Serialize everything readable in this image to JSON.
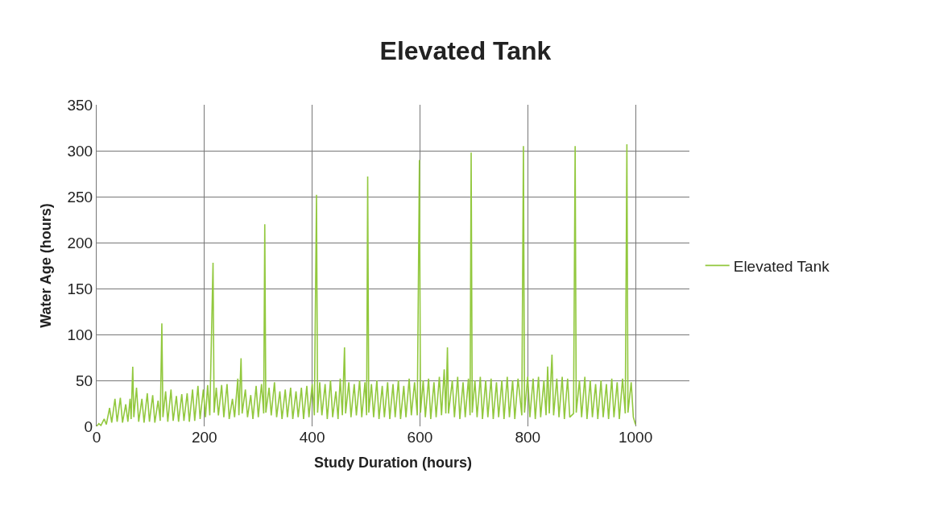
{
  "chart_data": {
    "type": "line",
    "title": "Elevated Tank",
    "xlabel": "Study Duration (hours)",
    "ylabel": "Water Age (hours)",
    "xlim": [
      0,
      1100
    ],
    "xticks": [
      0,
      200,
      400,
      600,
      800,
      1000
    ],
    "ylim": [
      0,
      350
    ],
    "yticks": [
      0,
      50,
      100,
      150,
      200,
      250,
      300,
      350
    ],
    "grid": true,
    "legend": "right",
    "marker": "none",
    "line_style": "solid",
    "x": [
      0,
      4,
      8,
      14,
      18,
      24,
      28,
      34,
      38,
      44,
      48,
      54,
      58,
      62,
      64,
      67,
      69,
      74,
      78,
      84,
      88,
      94,
      98,
      104,
      108,
      114,
      118,
      121,
      123,
      128,
      132,
      138,
      142,
      148,
      152,
      158,
      162,
      168,
      172,
      178,
      182,
      188,
      192,
      198,
      202,
      206,
      210,
      216,
      218,
      222,
      226,
      232,
      236,
      242,
      246,
      252,
      256,
      262,
      264,
      268,
      270,
      276,
      280,
      286,
      290,
      296,
      300,
      306,
      310,
      312,
      314,
      320,
      324,
      330,
      334,
      340,
      344,
      350,
      354,
      360,
      364,
      370,
      374,
      380,
      384,
      390,
      394,
      400,
      404,
      408,
      410,
      414,
      418,
      424,
      428,
      434,
      438,
      444,
      448,
      452,
      456,
      460,
      462,
      468,
      472,
      478,
      482,
      488,
      492,
      498,
      501,
      503,
      505,
      510,
      514,
      520,
      524,
      530,
      534,
      540,
      544,
      550,
      554,
      560,
      564,
      570,
      574,
      580,
      584,
      590,
      595,
      599,
      601,
      606,
      610,
      616,
      620,
      626,
      630,
      636,
      640,
      645,
      648,
      651,
      653,
      660,
      664,
      670,
      674,
      680,
      684,
      690,
      693,
      695,
      697,
      702,
      706,
      712,
      716,
      722,
      726,
      732,
      736,
      742,
      746,
      752,
      756,
      762,
      766,
      772,
      776,
      782,
      789,
      792,
      794,
      800,
      804,
      810,
      814,
      820,
      824,
      830,
      834,
      837,
      840,
      845,
      848,
      854,
      858,
      864,
      868,
      874,
      878,
      885,
      888,
      890,
      896,
      900,
      906,
      910,
      916,
      920,
      926,
      930,
      936,
      940,
      946,
      950,
      956,
      960,
      966,
      970,
      976,
      981,
      984,
      986,
      992,
      996,
      1000
    ],
    "series": [
      {
        "name": "Elevated Tank",
        "color": "#92c83e",
        "values": [
          0,
          3,
          1,
          8,
          2,
          20,
          4,
          30,
          5,
          31,
          4,
          24,
          5,
          30,
          8,
          65,
          10,
          42,
          5,
          30,
          4,
          36,
          5,
          34,
          4,
          28,
          6,
          112,
          10,
          38,
          5,
          40,
          6,
          33,
          5,
          35,
          6,
          36,
          5,
          40,
          6,
          44,
          8,
          40,
          10,
          45,
          12,
          178,
          15,
          42,
          12,
          45,
          10,
          46,
          8,
          30,
          10,
          52,
          12,
          74,
          14,
          40,
          10,
          34,
          8,
          44,
          10,
          46,
          14,
          220,
          15,
          42,
          12,
          48,
          10,
          38,
          8,
          40,
          10,
          42,
          8,
          38,
          10,
          42,
          8,
          44,
          10,
          46,
          12,
          252,
          15,
          48,
          12,
          46,
          8,
          50,
          10,
          38,
          8,
          52,
          12,
          86,
          14,
          48,
          10,
          46,
          12,
          50,
          10,
          48,
          12,
          272,
          15,
          46,
          10,
          50,
          8,
          44,
          10,
          48,
          8,
          46,
          10,
          50,
          8,
          44,
          10,
          52,
          12,
          48,
          12,
          290,
          15,
          50,
          10,
          52,
          8,
          48,
          10,
          54,
          12,
          62,
          14,
          86,
          14,
          50,
          10,
          54,
          8,
          48,
          10,
          52,
          12,
          298,
          15,
          50,
          10,
          54,
          8,
          50,
          10,
          52,
          8,
          48,
          10,
          50,
          8,
          54,
          10,
          50,
          8,
          52,
          12,
          305,
          15,
          54,
          10,
          52,
          8,
          54,
          10,
          50,
          12,
          65,
          14,
          78,
          12,
          52,
          10,
          54,
          8,
          52,
          10,
          14,
          305,
          15,
          50,
          10,
          54,
          8,
          50,
          10,
          46,
          8,
          50,
          10,
          46,
          8,
          52,
          10,
          48,
          8,
          52,
          14,
          307,
          15,
          48,
          10,
          2
        ]
      }
    ]
  }
}
